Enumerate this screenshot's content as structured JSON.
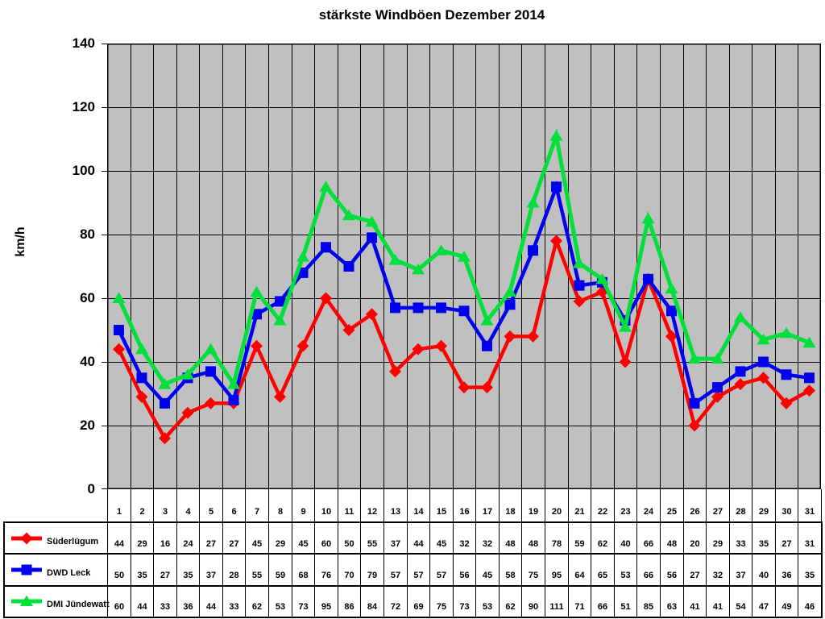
{
  "chart_data": {
    "type": "line",
    "title": "stärkste Windböen Dezember 2014",
    "ylabel": "km/h",
    "ylim": [
      0,
      140
    ],
    "yticks": [
      0,
      20,
      40,
      60,
      80,
      100,
      120,
      140
    ],
    "grid": true,
    "plot_bg": "#C0C0C0",
    "grid_color": "#000000",
    "legend_position": "bottom-left-table",
    "categories": [
      "1",
      "2",
      "3",
      "4",
      "5",
      "6",
      "7",
      "8",
      "9",
      "10",
      "11",
      "12",
      "13",
      "14",
      "15",
      "16",
      "17",
      "18",
      "19",
      "20",
      "21",
      "22",
      "23",
      "24",
      "25",
      "26",
      "27",
      "28",
      "29",
      "30",
      "31"
    ],
    "series": [
      {
        "name": "Süderlügum",
        "color": "#FF0000",
        "marker": "diamond",
        "values": [
          44,
          29,
          16,
          24,
          27,
          27,
          45,
          29,
          45,
          60,
          50,
          55,
          37,
          44,
          45,
          32,
          32,
          48,
          48,
          78,
          59,
          62,
          40,
          66,
          48,
          20,
          29,
          33,
          35,
          27,
          31
        ]
      },
      {
        "name": "DWD Leck",
        "color": "#0000EE",
        "marker": "square",
        "values": [
          50,
          35,
          27,
          35,
          37,
          28,
          55,
          59,
          68,
          76,
          70,
          79,
          57,
          57,
          57,
          56,
          45,
          58,
          75,
          95,
          64,
          65,
          53,
          66,
          56,
          27,
          32,
          37,
          40,
          36,
          35
        ]
      },
      {
        "name": "DMI Jündewatt",
        "color": "#00DF3C",
        "marker": "triangle",
        "values": [
          60,
          44,
          33,
          36,
          44,
          33,
          62,
          53,
          73,
          95,
          86,
          84,
          72,
          69,
          75,
          73,
          53,
          62,
          90,
          111,
          71,
          66,
          51,
          85,
          63,
          41,
          41,
          54,
          47,
          49,
          46
        ]
      }
    ]
  }
}
